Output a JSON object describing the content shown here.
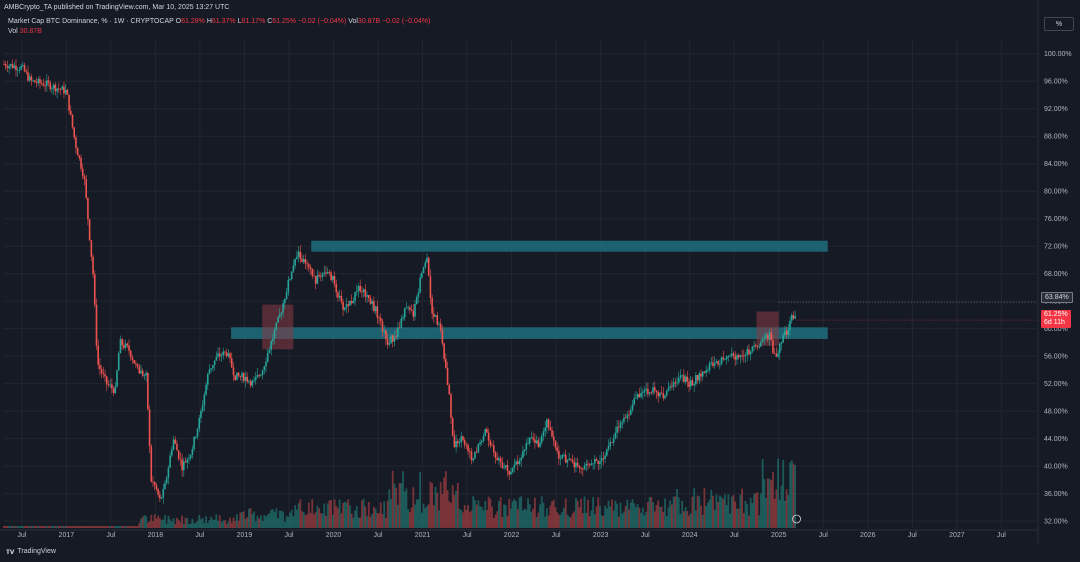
{
  "header": {
    "published": "AMBCrypto_TA published on TradingView.com, Mar 10, 2025 13:27 UTC"
  },
  "symbol": {
    "name": "Market Cap BTC Dominance, % · 1W · CRYPTOCAP",
    "o_label": "O",
    "o": "61.28%",
    "h_label": "H",
    "h": "61.37%",
    "l_label": "L",
    "l": "61.17%",
    "c_label": "C",
    "c": "61.25%",
    "change": "−0.02 (−0.04%)",
    "vol_label": "Vol",
    "vol": "30.87B",
    "vol_change": "−0.02 (−0.04%)"
  },
  "vol_row": {
    "label": "Vol",
    "value": "30.87B"
  },
  "scale_button": "%",
  "footer": {
    "brand": "TradingView",
    "logo": "tradingview-logo"
  },
  "colors": {
    "up": "#26a69a",
    "down": "#ef5350",
    "zone": "#1d6f7e",
    "box": "#8a3a45",
    "bg": "#161a25"
  },
  "price_labels": {
    "level": "63.84%",
    "last": "61.25%",
    "countdown": "6d 11h"
  },
  "chart_data": {
    "type": "candlestick",
    "title": "Market Cap BTC Dominance, % · 1W · CRYPTOCAP",
    "yaxis_ticks": [
      "100.00%",
      "96.00%",
      "92.00%",
      "88.00%",
      "84.00%",
      "80.00%",
      "76.00%",
      "72.00%",
      "68.00%",
      "64.00%",
      "60.00%",
      "56.00%",
      "52.00%",
      "48.00%",
      "44.00%",
      "40.00%",
      "36.00%",
      "32.00%"
    ],
    "ylim": [
      31,
      102
    ],
    "xaxis_ticks": [
      "Jul",
      "2017",
      "Jul",
      "2018",
      "Jul",
      "2019",
      "Jul",
      "2020",
      "Jul",
      "2021",
      "Jul",
      "2022",
      "Jul",
      "2023",
      "Jul",
      "2024",
      "Jul",
      "2025",
      "Jul",
      "2026",
      "Jul",
      "2027",
      "Jul"
    ],
    "xlim": [
      2016.3,
      2027.9
    ],
    "series_path": [
      [
        2016.3,
        98.5
      ],
      [
        2016.5,
        98
      ],
      [
        2016.6,
        96
      ],
      [
        2016.8,
        95.5
      ],
      [
        2017.0,
        94.5
      ],
      [
        2017.1,
        87
      ],
      [
        2017.2,
        82
      ],
      [
        2017.3,
        68
      ],
      [
        2017.35,
        55
      ],
      [
        2017.45,
        52
      ],
      [
        2017.55,
        51
      ],
      [
        2017.6,
        58
      ],
      [
        2017.7,
        57
      ],
      [
        2017.8,
        54
      ],
      [
        2017.9,
        53
      ],
      [
        2017.95,
        38
      ],
      [
        2018.0,
        37
      ],
      [
        2018.05,
        35
      ],
      [
        2018.1,
        36.5
      ],
      [
        2018.2,
        44
      ],
      [
        2018.3,
        40
      ],
      [
        2018.4,
        42
      ],
      [
        2018.5,
        47
      ],
      [
        2018.6,
        54
      ],
      [
        2018.7,
        56
      ],
      [
        2018.8,
        56.5
      ],
      [
        2018.9,
        53
      ],
      [
        2019.0,
        53
      ],
      [
        2019.1,
        52
      ],
      [
        2019.2,
        54
      ],
      [
        2019.3,
        58
      ],
      [
        2019.4,
        62
      ],
      [
        2019.5,
        67
      ],
      [
        2019.6,
        71
      ],
      [
        2019.7,
        69
      ],
      [
        2019.8,
        67
      ],
      [
        2019.9,
        68.5
      ],
      [
        2020.0,
        67
      ],
      [
        2020.1,
        63
      ],
      [
        2020.2,
        64
      ],
      [
        2020.3,
        66
      ],
      [
        2020.4,
        64.5
      ],
      [
        2020.5,
        62
      ],
      [
        2020.6,
        58
      ],
      [
        2020.7,
        59
      ],
      [
        2020.8,
        63
      ],
      [
        2020.9,
        62
      ],
      [
        2021.0,
        69
      ],
      [
        2021.05,
        70.5
      ],
      [
        2021.1,
        63
      ],
      [
        2021.2,
        60
      ],
      [
        2021.3,
        50
      ],
      [
        2021.35,
        43
      ],
      [
        2021.45,
        44
      ],
      [
        2021.55,
        41
      ],
      [
        2021.7,
        45
      ],
      [
        2021.8,
        42
      ],
      [
        2021.9,
        40
      ],
      [
        2022.0,
        39
      ],
      [
        2022.1,
        41.5
      ],
      [
        2022.2,
        44
      ],
      [
        2022.3,
        43
      ],
      [
        2022.4,
        47
      ],
      [
        2022.5,
        42
      ],
      [
        2022.6,
        41
      ],
      [
        2022.7,
        40
      ],
      [
        2022.8,
        39.5
      ],
      [
        2022.9,
        40.5
      ],
      [
        2023.0,
        41
      ],
      [
        2023.1,
        43
      ],
      [
        2023.2,
        46
      ],
      [
        2023.3,
        47.5
      ],
      [
        2023.4,
        50
      ],
      [
        2023.5,
        51
      ],
      [
        2023.6,
        51
      ],
      [
        2023.7,
        50
      ],
      [
        2023.8,
        52
      ],
      [
        2023.9,
        53
      ],
      [
        2024.0,
        52
      ],
      [
        2024.1,
        53
      ],
      [
        2024.2,
        54.5
      ],
      [
        2024.3,
        55
      ],
      [
        2024.4,
        56
      ],
      [
        2024.5,
        56
      ],
      [
        2024.6,
        56.5
      ],
      [
        2024.7,
        57
      ],
      [
        2024.8,
        58
      ],
      [
        2024.9,
        59
      ],
      [
        2024.95,
        56
      ],
      [
        2025.0,
        57
      ],
      [
        2025.1,
        60
      ],
      [
        2025.15,
        61.5
      ],
      [
        2025.2,
        61.25
      ]
    ],
    "zones": [
      {
        "from_x": 2019.75,
        "to_x": 2025.55,
        "low": 71.2,
        "high": 72.8
      },
      {
        "from_x": 2018.85,
        "to_x": 2025.55,
        "low": 58.5,
        "high": 60.2
      }
    ],
    "boxes": [
      {
        "from_x": 2019.2,
        "to_x": 2019.55,
        "low": 57.0,
        "high": 63.5
      },
      {
        "from_x": 2024.75,
        "to_x": 2025.0,
        "low": 57.5,
        "high": 62.5
      }
    ],
    "dashed_level": 63.84,
    "last_value": 61.25
  }
}
